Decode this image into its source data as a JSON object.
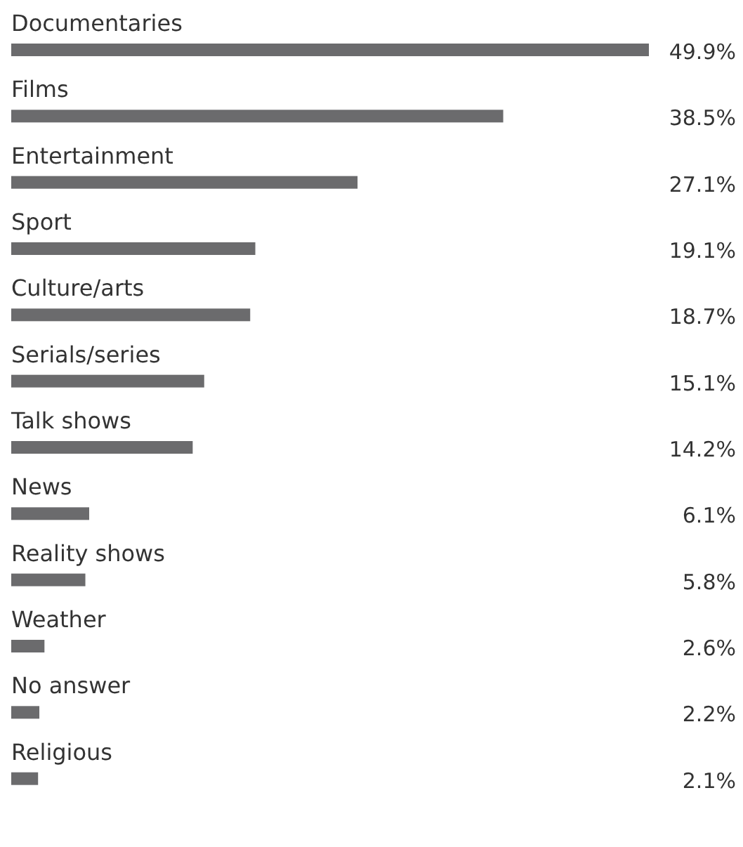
{
  "chart_data": {
    "type": "bar",
    "orientation": "horizontal",
    "categories": [
      "Documentaries",
      "Films",
      "Entertainment",
      "Sport",
      "Culture/arts",
      "Serials/series",
      "Talk shows",
      "News",
      "Reality shows",
      "Weather",
      "No answer",
      "Religious"
    ],
    "values": [
      49.9,
      38.5,
      27.1,
      19.1,
      18.7,
      15.1,
      14.2,
      6.1,
      5.8,
      2.6,
      2.2,
      2.1
    ],
    "value_labels": [
      "49.9%",
      "38.5%",
      "27.1%",
      "19.1%",
      "18.7%",
      "15.1%",
      "14.2%",
      "6.1%",
      "5.8%",
      "2.6%",
      "2.2%",
      "2.1%"
    ],
    "color": "#6b6b6d"
  }
}
